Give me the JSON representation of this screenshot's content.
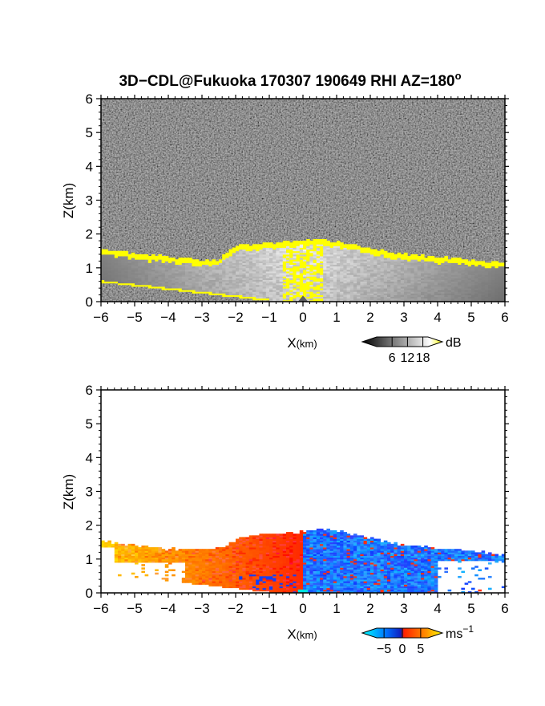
{
  "figure": {
    "title": "3D−CDL@Fukuoka 170307 190649 RHI AZ=180",
    "title_superscript": "o"
  },
  "chart_data": [
    {
      "type": "heatmap",
      "name": "snr-panel",
      "xlabel_main": "X",
      "xlabel_unit": "(km)",
      "ylabel": "Z(km)",
      "xlim": [
        -6,
        6
      ],
      "ylim": [
        0,
        6
      ],
      "xticks": [
        "−6",
        "−5",
        "−4",
        "−3",
        "−2",
        "−1",
        "0",
        "1",
        "2",
        "3",
        "4",
        "5",
        "6"
      ],
      "yticks": [
        "0",
        "1",
        "2",
        "3",
        "4",
        "5",
        "6"
      ],
      "colorbar": {
        "unit": "dB",
        "ticks": [
          "6",
          "12",
          "18"
        ],
        "tick_values": [
          6,
          12,
          18
        ],
        "range": [
          0,
          20
        ],
        "colors": [
          "#000000",
          "#ffffff",
          "#ffff00"
        ]
      },
      "background": "noise",
      "echo_top_profile": {
        "x": [
          -6,
          -5.5,
          -5,
          -4.5,
          -4,
          -3.5,
          -3,
          -2.5,
          -2,
          -1.5,
          -1,
          -0.5,
          0,
          0.5,
          1,
          1.5,
          2,
          2.5,
          3,
          3.5,
          4,
          4.5,
          5,
          5.5,
          6
        ],
        "z": [
          1.5,
          1.45,
          1.4,
          1.35,
          1.3,
          1.25,
          1.2,
          1.22,
          1.62,
          1.68,
          1.7,
          1.74,
          1.78,
          1.8,
          1.75,
          1.65,
          1.55,
          1.45,
          1.38,
          1.33,
          1.28,
          1.25,
          1.2,
          1.15,
          1.1
        ]
      }
    },
    {
      "type": "heatmap",
      "name": "doppler-velocity-panel",
      "xlabel_main": "X",
      "xlabel_unit": "(km)",
      "ylabel": "Z(km)",
      "xlim": [
        -6,
        6
      ],
      "ylim": [
        0,
        6
      ],
      "xticks": [
        "−6",
        "−5",
        "−4",
        "−3",
        "−2",
        "−1",
        "0",
        "1",
        "2",
        "3",
        "4",
        "5",
        "6"
      ],
      "yticks": [
        "0",
        "1",
        "2",
        "3",
        "4",
        "5",
        "6"
      ],
      "colorbar": {
        "unit": "ms",
        "unit_exponent": "−1",
        "ticks": [
          "−5",
          "0",
          "5"
        ],
        "tick_values": [
          -5,
          0,
          5
        ],
        "range": [
          -7,
          7
        ],
        "colors": [
          "#00ffff",
          "#0050ff",
          "#ff2000",
          "#ffff00"
        ]
      },
      "echo_top_profile": {
        "x": [
          -6,
          -5.5,
          -5,
          -4.5,
          -4,
          -3.5,
          -3,
          -2.5,
          -2,
          -1.5,
          -1,
          -0.5,
          0,
          0.5,
          1,
          1.5,
          2,
          2.5,
          3,
          3.5,
          4,
          4.5,
          5,
          5.5,
          6
        ],
        "z": [
          1.5,
          1.45,
          1.4,
          1.32,
          1.28,
          1.25,
          1.25,
          1.3,
          1.55,
          1.68,
          1.72,
          1.76,
          1.8,
          1.85,
          1.8,
          1.7,
          1.6,
          1.5,
          1.4,
          1.35,
          1.3,
          1.27,
          1.2,
          1.15,
          1.1
        ]
      },
      "velocity_regions": [
        {
          "x_range": [
            -6,
            -0.3
          ],
          "velocity": 3
        },
        {
          "x_range": [
            0,
            6
          ],
          "velocity": -3
        }
      ]
    }
  ]
}
